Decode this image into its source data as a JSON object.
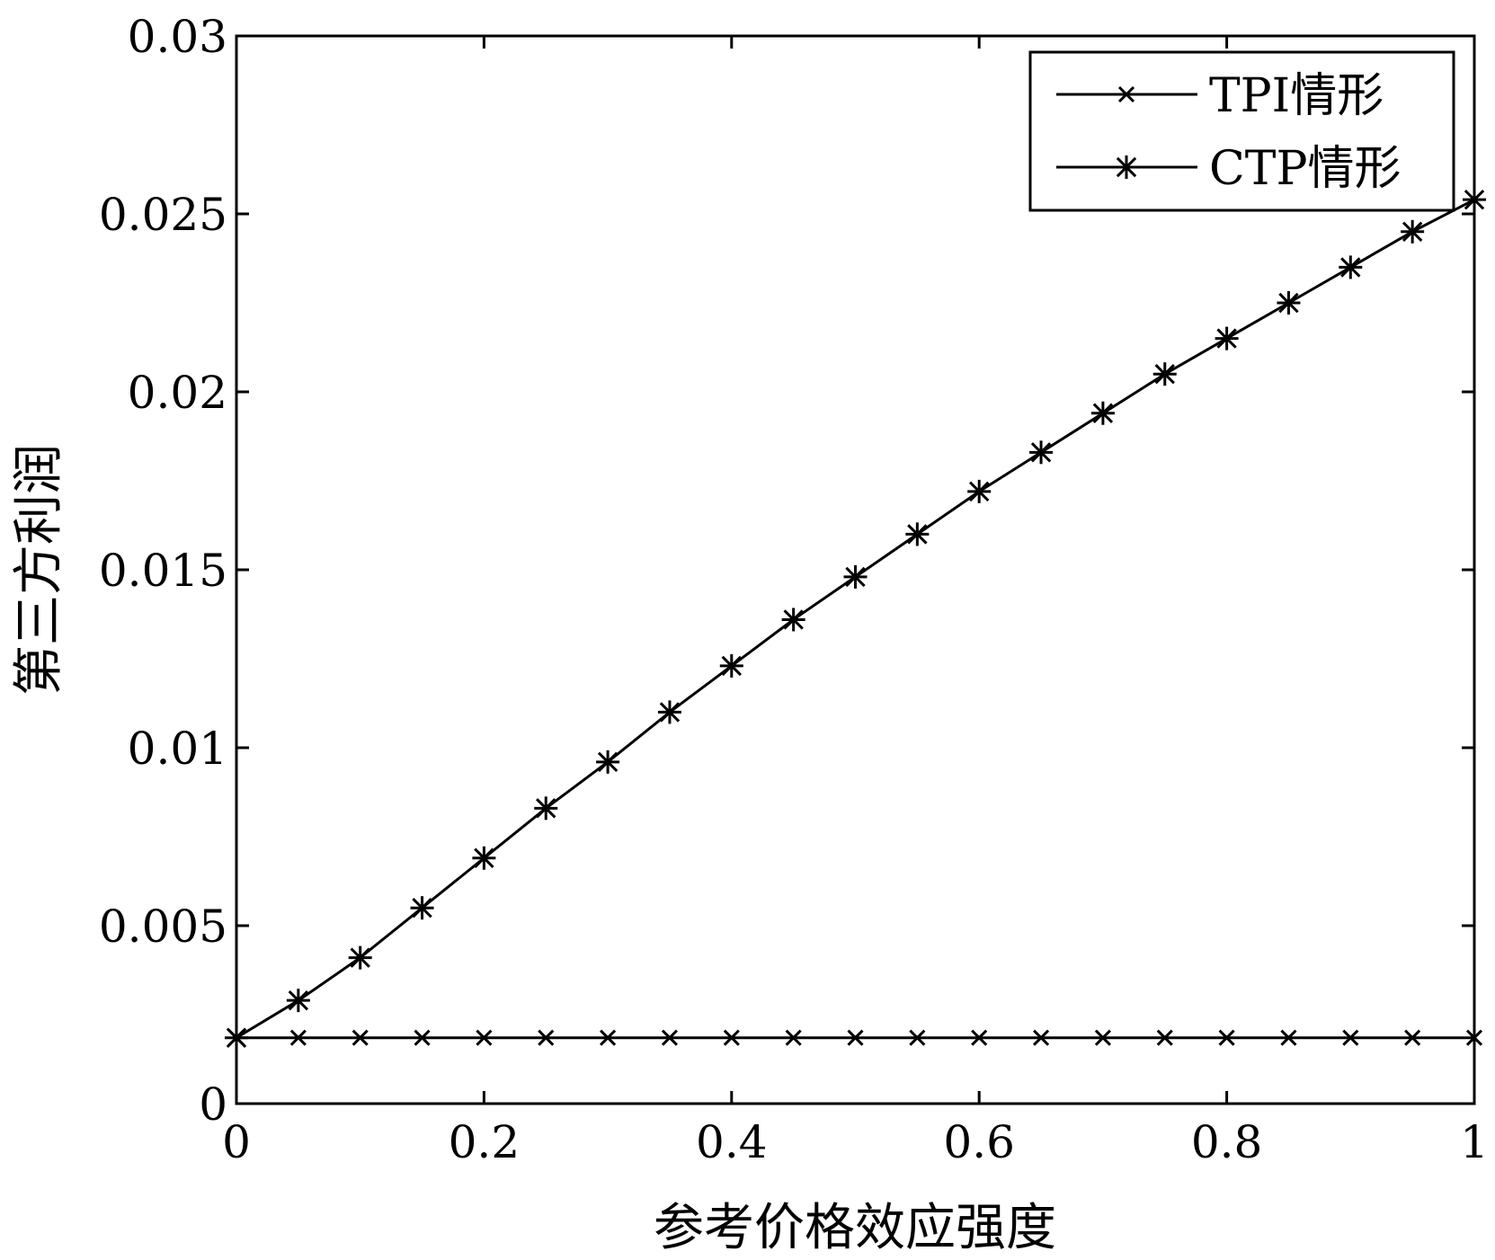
{
  "chart_data": {
    "type": "line",
    "title": "",
    "xlabel": "参考价格效应强度",
    "ylabel": "第三方利润",
    "xlim": [
      0,
      1
    ],
    "ylim": [
      0,
      0.03
    ],
    "x_ticks": [
      "0",
      "0.2",
      "0.4",
      "0.6",
      "0.8",
      "1"
    ],
    "y_ticks": [
      "0",
      "0.005",
      "0.01",
      "0.015",
      "0.02",
      "0.025",
      "0.03"
    ],
    "grid": false,
    "legend_position": "top-right",
    "x": [
      0,
      0.05,
      0.1,
      0.15,
      0.2,
      0.25,
      0.3,
      0.35,
      0.4,
      0.45,
      0.5,
      0.55,
      0.6,
      0.65,
      0.7,
      0.75,
      0.8,
      0.85,
      0.9,
      0.95,
      1.0
    ],
    "series": [
      {
        "name": "TPI情形",
        "marker": "x",
        "color": "#000000",
        "values": [
          0.00185,
          0.00185,
          0.00185,
          0.00185,
          0.00185,
          0.00185,
          0.00185,
          0.00185,
          0.00185,
          0.00185,
          0.00185,
          0.00185,
          0.00185,
          0.00185,
          0.00185,
          0.00185,
          0.00185,
          0.00185,
          0.00185,
          0.00185,
          0.00185
        ]
      },
      {
        "name": "CTP情形",
        "marker": "asterisk",
        "color": "#000000",
        "values": [
          0.00185,
          0.0029,
          0.0041,
          0.0055,
          0.0069,
          0.0083,
          0.0096,
          0.011,
          0.0123,
          0.0136,
          0.0148,
          0.016,
          0.0172,
          0.0183,
          0.0194,
          0.0205,
          0.0215,
          0.0225,
          0.0235,
          0.0245,
          0.0254
        ]
      }
    ]
  }
}
